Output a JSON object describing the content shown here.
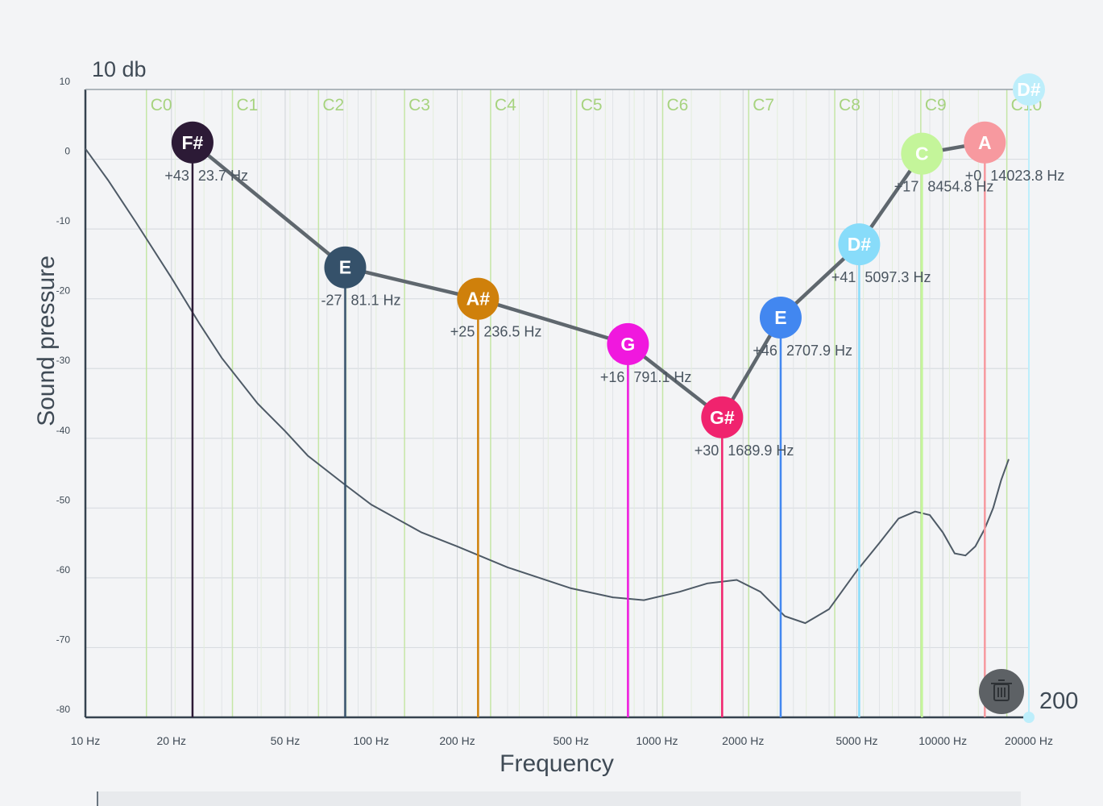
{
  "range_top_label": "10 db",
  "range_bottom_label": "200",
  "chart_data": {
    "type": "line",
    "xlabel": "Frequency",
    "ylabel": "Sound pressure",
    "x_scale": "log",
    "xlim": [
      10,
      20000
    ],
    "ylim": [
      -80,
      10
    ],
    "grid": true,
    "y_ticks": [
      10,
      0,
      -10,
      -20,
      -30,
      -40,
      -50,
      -60,
      -70,
      -80
    ],
    "x_ticks": [
      {
        "value": 10,
        "label": "10 Hz"
      },
      {
        "value": 20,
        "label": "20 Hz"
      },
      {
        "value": 50,
        "label": "50 Hz"
      },
      {
        "value": 100,
        "label": "100 Hz"
      },
      {
        "value": 200,
        "label": "200 Hz"
      },
      {
        "value": 500,
        "label": "500 Hz"
      },
      {
        "value": 1000,
        "label": "1000 Hz"
      },
      {
        "value": 2000,
        "label": "2000 Hz"
      },
      {
        "value": 5000,
        "label": "5000 Hz"
      },
      {
        "value": 10000,
        "label": "10000 Hz"
      },
      {
        "value": 20000,
        "label": "20000 Hz"
      }
    ],
    "octave_lines": [
      {
        "label": "C0",
        "freq": 16.35
      },
      {
        "label": "C1",
        "freq": 32.7
      },
      {
        "label": "C2",
        "freq": 65.41
      },
      {
        "label": "C3",
        "freq": 130.81
      },
      {
        "label": "C4",
        "freq": 261.63
      },
      {
        "label": "C5",
        "freq": 523.25
      },
      {
        "label": "C6",
        "freq": 1046.5
      },
      {
        "label": "C7",
        "freq": 2093
      },
      {
        "label": "C8",
        "freq": 4186
      },
      {
        "label": "C9",
        "freq": 8372
      },
      {
        "label": "C10",
        "freq": 16744
      }
    ],
    "response_curve": {
      "x": [
        10,
        12,
        15,
        20,
        25,
        30,
        40,
        50,
        60,
        80,
        100,
        150,
        200,
        300,
        500,
        700,
        900,
        1200,
        1500,
        1900,
        2300,
        2800,
        3300,
        4000,
        5000,
        6000,
        7000,
        8000,
        9000,
        10000,
        11000,
        12000,
        13000,
        14000,
        15000,
        16000,
        17000
      ],
      "y": [
        1.5,
        -3,
        -9,
        -17,
        -23.5,
        -28.5,
        -35,
        -39,
        -42.5,
        -46.5,
        -49.5,
        -53.5,
        -55.5,
        -58.5,
        -61.5,
        -62.8,
        -63.2,
        -62,
        -60.8,
        -60.3,
        -62,
        -65.5,
        -66.5,
        -64.5,
        -59,
        -55,
        -51.5,
        -50.5,
        -51,
        -53.5,
        -56.5,
        -56.8,
        -55.5,
        -53,
        -50,
        -46,
        -43
      ]
    },
    "peaks": [
      {
        "note": "F#",
        "cents": "+43",
        "freq_label": "23.7 Hz",
        "freq": 23.7,
        "db": 2.4,
        "color": "#2c1a36"
      },
      {
        "note": "E",
        "cents": "-27",
        "freq_label": "81.1 Hz",
        "freq": 81.1,
        "db": -15.5,
        "color": "#35516a"
      },
      {
        "note": "A#",
        "cents": "+25",
        "freq_label": "236.5 Hz",
        "freq": 236.5,
        "db": -20,
        "color": "#cf800b"
      },
      {
        "note": "G",
        "cents": "+16",
        "freq_label": "791.1 Hz",
        "freq": 791.1,
        "db": -26.5,
        "color": "#f018de"
      },
      {
        "note": "G#",
        "cents": "+30",
        "freq_label": "1689.9 Hz",
        "freq": 1689.9,
        "db": -37,
        "color": "#f0236e"
      },
      {
        "note": "E",
        "cents": "+46",
        "freq_label": "2707.9 Hz",
        "freq": 2707.9,
        "db": -22.7,
        "color": "#4287f0"
      },
      {
        "note": "D#",
        "cents": "+41",
        "freq_label": "5097.3 Hz",
        "freq": 5097.3,
        "db": -12.2,
        "color": "#88dcfa"
      },
      {
        "note": "C",
        "cents": "+17",
        "freq_label": "8454.8 Hz",
        "freq": 8454.8,
        "db": 0.8,
        "color": "#c4f59a"
      },
      {
        "note": "A",
        "cents": "+0",
        "freq_label": "14023.8 Hz",
        "freq": 14023.8,
        "db": 2.4,
        "color": "#f7999f"
      }
    ],
    "range_marker": {
      "note": "D#",
      "freq": 20000,
      "db": 10,
      "color": "#bdeefb"
    }
  },
  "controls": {
    "delete_icon": "trash-icon",
    "delete_color": "#5d6165"
  }
}
